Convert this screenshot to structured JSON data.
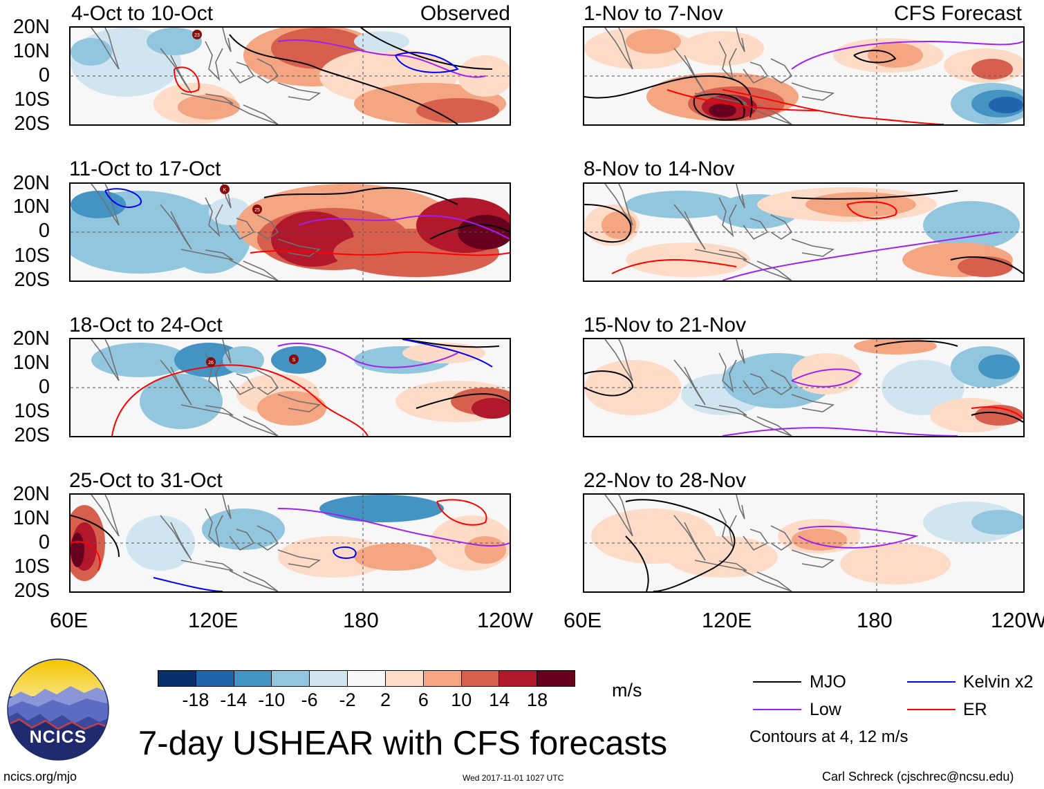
{
  "title": "7-day USHEAR with CFS forecasts",
  "source_url": "ncics.org/mjo",
  "logo_text": "NCICS",
  "timestamp": "Wed 2017-11-01 1027 UTC",
  "credit": "Carl Schreck (cjschrec@ncsu.edu)",
  "lat_ticks": [
    "20N",
    "10N",
    "0",
    "10S",
    "20S"
  ],
  "lon_ticks": [
    "60E",
    "120E",
    "180",
    "120W"
  ],
  "columns": {
    "left_tag": "Observed",
    "right_tag": "CFS Forecast"
  },
  "panels": {
    "obs": [
      "4-Oct to 10-Oct",
      "11-Oct to 17-Oct",
      "18-Oct to 24-Oct",
      "25-Oct to 31-Oct"
    ],
    "fcst": [
      "1-Nov to 7-Nov",
      "8-Nov to 14-Nov",
      "15-Nov to 21-Nov",
      "22-Nov to 28-Nov"
    ]
  },
  "storm_markers": [
    "23",
    "K",
    "25",
    "26",
    "S"
  ],
  "colorbar": {
    "unit": "m/s",
    "ticks": [
      "-18",
      "-14",
      "-10",
      "-6",
      "-2",
      "2",
      "6",
      "10",
      "14",
      "18"
    ],
    "colors": [
      "#08306b",
      "#2166ac",
      "#4393c3",
      "#92c5de",
      "#d1e5f0",
      "#f7f7f7",
      "#fddbc7",
      "#f4a582",
      "#d6604d",
      "#b2182b",
      "#67001f"
    ]
  },
  "legend": {
    "items": [
      {
        "label": "MJO",
        "color": "#000000"
      },
      {
        "label": "Kelvin x2",
        "color": "#0000ff"
      },
      {
        "label": "Low",
        "color": "#a020f0"
      },
      {
        "label": "ER",
        "color": "#ff0000"
      }
    ],
    "note": "Contours at 4, 12 m/s"
  }
}
